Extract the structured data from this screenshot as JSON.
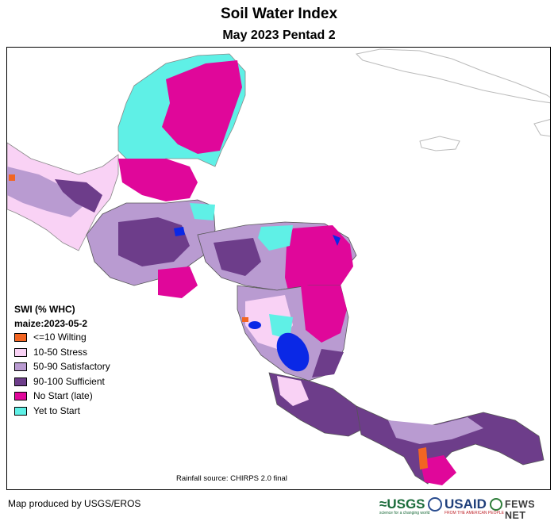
{
  "header": {
    "title": "Soil Water Index",
    "subtitle": "May 2023 Pentad 2"
  },
  "legend": {
    "title": "SWI (% WHC)",
    "crop": "maize:2023-05-2",
    "items": [
      {
        "label": "<=10 Wilting",
        "color": "#f26522"
      },
      {
        "label": "10-50 Stress",
        "color": "#f9d2f5"
      },
      {
        "label": "50-90 Satisfactory",
        "color": "#b99bd1"
      },
      {
        "label": "90-100 Sufficient",
        "color": "#6d3d8a"
      },
      {
        "label": "No Start (late)",
        "color": "#e0079a"
      },
      {
        "label": "Yet to Start",
        "color": "#5ff0e6"
      }
    ],
    "water_color": "#0a28e6"
  },
  "footer": {
    "source": "Rainfall source: CHIRPS 2.0 final",
    "credit": "Map produced by USGS/EROS",
    "logos": {
      "usgs": "≈USGS",
      "usgs_tagline": "science for a changing world",
      "usaid": "USAID",
      "usaid_tagline": "FROM THE AMERICAN PEOPLE",
      "fews": "FEWS NET"
    }
  }
}
